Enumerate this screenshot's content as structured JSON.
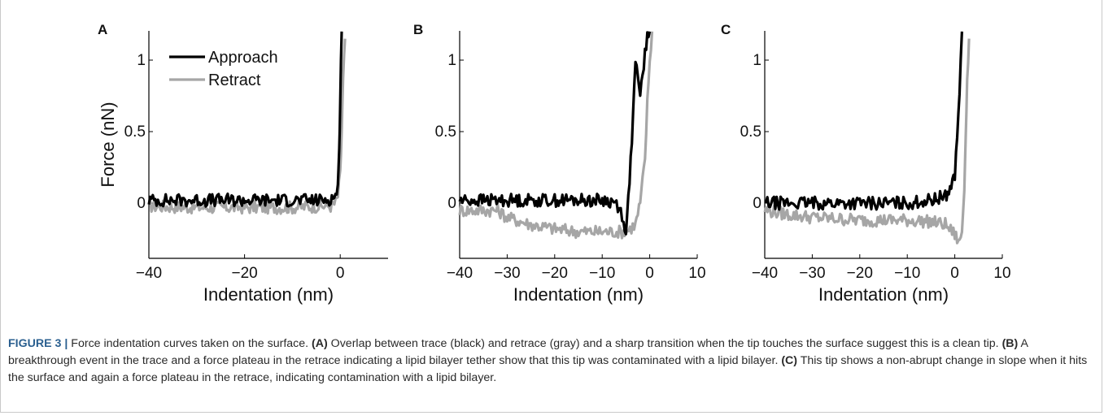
{
  "colors": {
    "approach": "#000000",
    "retract": "#a6a6a6",
    "caption_label": "#2a5f8f"
  },
  "chart_data": [
    {
      "panel_label": "A",
      "type": "line",
      "ylabel": "Force (nN)",
      "xlabel": "Indentation (nm)",
      "xlim": [
        -40,
        10
      ],
      "ylim": [
        -0.3,
        1.2
      ],
      "xticks": [
        -40,
        -20,
        0
      ],
      "xtick_labels": [
        "−40",
        "−20",
        "0"
      ],
      "yticks": [
        0,
        0.5,
        1
      ],
      "ytick_labels": [
        "0",
        "0.5",
        "1"
      ],
      "legend": {
        "placement": "top-left",
        "entries": [
          "Approach",
          "Retract"
        ]
      },
      "series": [
        {
          "name": "Approach",
          "x": [
            -40,
            -30,
            -20,
            -10,
            -4,
            -2,
            -1,
            -0.5,
            -0.2,
            0,
            0.3
          ],
          "y": [
            0.02,
            0.02,
            0.02,
            0.02,
            0.02,
            0.03,
            0.05,
            0.12,
            0.35,
            0.75,
            1.2
          ]
        },
        {
          "name": "Retract",
          "x": [
            -40,
            -30,
            -20,
            -10,
            -4,
            -2,
            -1,
            -0.5,
            0,
            0.3,
            0.6,
            1.0
          ],
          "y": [
            -0.02,
            -0.03,
            -0.03,
            -0.03,
            -0.02,
            -0.02,
            0,
            0.05,
            0.2,
            0.5,
            0.85,
            1.15
          ]
        }
      ]
    },
    {
      "panel_label": "B",
      "type": "line",
      "xlabel": "Indentation (nm)",
      "xlim": [
        -40,
        10
      ],
      "ylim": [
        -0.3,
        1.2
      ],
      "xticks": [
        -40,
        -30,
        -20,
        -10,
        0,
        10
      ],
      "xtick_labels": [
        "−40",
        "−30",
        "−20",
        "−10",
        "0",
        "10"
      ],
      "yticks": [
        0,
        0.5,
        1
      ],
      "ytick_labels": [
        "0",
        "0.5",
        "1"
      ],
      "series": [
        {
          "name": "Approach",
          "x": [
            -40,
            -30,
            -20,
            -10,
            -7,
            -5.5,
            -5,
            -4.5,
            -4,
            -3.5,
            -3,
            -2.5,
            -2,
            -1.5,
            -1,
            -0.5,
            0
          ],
          "y": [
            0.02,
            0.02,
            0.02,
            0.02,
            0.0,
            -0.1,
            -0.25,
            0.05,
            0.3,
            0.6,
            1.0,
            0.85,
            0.75,
            0.9,
            1.05,
            1.15,
            1.2
          ]
        },
        {
          "name": "Retract",
          "x": [
            -40,
            -32,
            -30,
            -25,
            -20,
            -15,
            -10,
            -5,
            -3,
            -2,
            -1,
            -0.5,
            0,
            0.5
          ],
          "y": [
            -0.05,
            -0.05,
            -0.1,
            -0.15,
            -0.18,
            -0.2,
            -0.2,
            -0.2,
            -0.15,
            0.0,
            0.3,
            0.7,
            1.0,
            1.2
          ]
        }
      ]
    },
    {
      "panel_label": "C",
      "type": "line",
      "xlabel": "Indentation (nm)",
      "xlim": [
        -40,
        10
      ],
      "ylim": [
        -0.3,
        1.2
      ],
      "xticks": [
        -40,
        -30,
        -20,
        -10,
        0,
        10
      ],
      "xtick_labels": [
        "−40",
        "−30",
        "−20",
        "−10",
        "0",
        "10"
      ],
      "yticks": [
        0,
        0.5,
        1
      ],
      "ytick_labels": [
        "0",
        "0.5",
        "1"
      ],
      "series": [
        {
          "name": "Approach",
          "x": [
            -40,
            -30,
            -20,
            -10,
            -5,
            -2,
            -1,
            0,
            0.5,
            1,
            1.5
          ],
          "y": [
            0.0,
            0.0,
            0.0,
            0.0,
            0.02,
            0.05,
            0.1,
            0.2,
            0.45,
            0.8,
            1.2
          ]
        },
        {
          "name": "Retract",
          "x": [
            -40,
            -35,
            -30,
            -25,
            -20,
            -10,
            -5,
            -2,
            0,
            1,
            1.5,
            2,
            2.3,
            2.6,
            3
          ],
          "y": [
            -0.05,
            -0.08,
            -0.1,
            -0.11,
            -0.12,
            -0.12,
            -0.13,
            -0.15,
            -0.22,
            -0.28,
            -0.2,
            0.1,
            0.5,
            0.85,
            1.15
          ]
        }
      ]
    }
  ],
  "caption": {
    "label": "FIGURE 3 |",
    "intro": " Force indentation curves taken on the surface. ",
    "a_ref": "(A)",
    "a_text": " Overlap between trace (black) and retrace (gray) and a sharp transition when the tip touches the surface suggest this is a clean tip. ",
    "b_ref": "(B)",
    "b_text": " A breakthrough event in the trace and a force plateau in the retrace indicating a lipid bilayer tether show that this tip was contaminated with a lipid bilayer. ",
    "c_ref": "(C)",
    "c_text": " This tip shows a non-abrupt change in slope when it hits the surface and again a force plateau in the retrace, indicating contamination with a lipid bilayer."
  }
}
